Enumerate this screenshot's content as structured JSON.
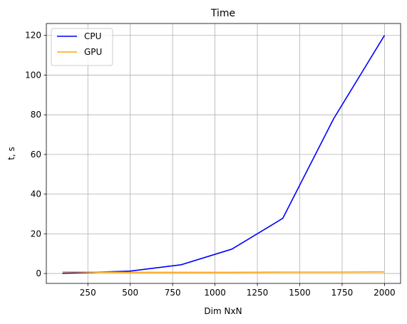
{
  "chart_data": {
    "type": "line",
    "title": "Time",
    "xlabel": "Dim NxN",
    "ylabel": "t, s",
    "xlim": [
      5,
      2095
    ],
    "ylim": [
      -5,
      126
    ],
    "xticks": [
      250,
      500,
      750,
      1000,
      1250,
      1500,
      1750,
      2000
    ],
    "yticks": [
      0,
      20,
      40,
      60,
      80,
      100,
      120
    ],
    "grid": true,
    "legend_position": "top-left",
    "series": [
      {
        "name": "CPU",
        "color": "#0000ff",
        "x": [
          100,
          500,
          800,
          1100,
          1400,
          1700,
          2000
        ],
        "y": [
          0.1,
          1.2,
          4.4,
          12.3,
          27.8,
          78.0,
          120.0
        ]
      },
      {
        "name": "GPU",
        "color": "#ffa500",
        "x": [
          100,
          500,
          800,
          1100,
          1400,
          1700,
          2000
        ],
        "y": [
          0.8,
          0.6,
          0.6,
          0.6,
          0.7,
          0.7,
          0.8
        ]
      }
    ]
  }
}
